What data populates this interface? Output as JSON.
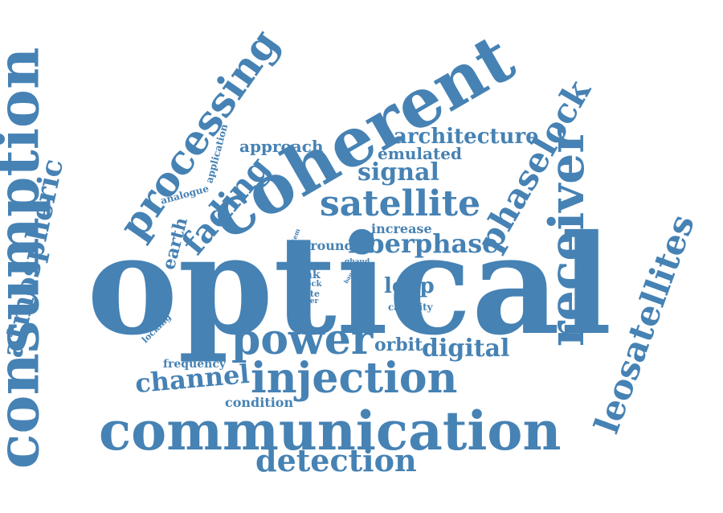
{
  "color": "#4682b4",
  "words": [
    {
      "key": "optical",
      "text": "optical"
    },
    {
      "key": "consumption",
      "text": "consumption"
    },
    {
      "key": "coherent",
      "text": "coherent"
    },
    {
      "key": "communication",
      "text": "communication"
    },
    {
      "key": "receiver",
      "text": "receiver"
    },
    {
      "key": "injection",
      "text": "injection"
    },
    {
      "key": "processing",
      "text": "processing"
    },
    {
      "key": "power",
      "text": "power"
    },
    {
      "key": "leosatellites",
      "text": "leosatellites"
    },
    {
      "key": "satellite",
      "text": "satellite"
    },
    {
      "key": "phaselock",
      "text": "phaselock"
    },
    {
      "key": "atmospheric",
      "text": "atmospheric"
    },
    {
      "key": "detection",
      "text": "detection"
    },
    {
      "key": "fading",
      "text": "fading"
    },
    {
      "key": "channel",
      "text": "channel"
    },
    {
      "key": "fiberphase",
      "text": "fiberphase"
    },
    {
      "key": "signal",
      "text": "signal"
    },
    {
      "key": "digital",
      "text": "digital"
    },
    {
      "key": "architecture",
      "text": "architecture"
    },
    {
      "key": "loop",
      "text": "loop"
    },
    {
      "key": "earth",
      "text": "earth"
    },
    {
      "key": "approach",
      "text": "approach"
    },
    {
      "key": "emulated",
      "text": "emulated"
    },
    {
      "key": "orbit",
      "text": "orbit"
    },
    {
      "key": "increase",
      "text": "increase"
    },
    {
      "key": "condition",
      "text": "condition"
    },
    {
      "key": "ground",
      "text": "ground"
    },
    {
      "key": "frequency",
      "text": "frequency"
    },
    {
      "key": "link",
      "text": "link"
    },
    {
      "key": "capacity",
      "text": "capacity"
    },
    {
      "key": "application",
      "text": "application"
    },
    {
      "key": "analogue",
      "text": "analogue"
    },
    {
      "key": "locking",
      "text": "locking"
    },
    {
      "key": "rate",
      "text": "rate"
    },
    {
      "key": "lock",
      "text": "lock"
    },
    {
      "key": "higher",
      "text": "higher"
    },
    {
      "key": "system",
      "text": "system"
    },
    {
      "key": "data",
      "text": "data"
    },
    {
      "key": "gbaud",
      "text": "gbaud"
    },
    {
      "key": "baud",
      "text": "baud"
    }
  ]
}
